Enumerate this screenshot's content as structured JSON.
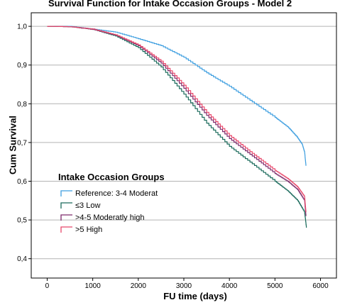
{
  "chart_data": {
    "type": "line",
    "title": "Survival Function for Intake Occasion Groups - Model 2",
    "xlabel": "FU time (days)",
    "ylabel": "Cum Survival",
    "xlim": [
      -350,
      6350
    ],
    "ylim": [
      0.35,
      1.035
    ],
    "xticks": [
      0,
      1000,
      2000,
      3000,
      4000,
      5000,
      6000
    ],
    "xtick_labels": [
      "0",
      "1000",
      "2000",
      "3000",
      "4000",
      "5000",
      "6000"
    ],
    "yticks": [
      0.4,
      0.5,
      0.6,
      0.7,
      0.8,
      0.9,
      1.0
    ],
    "ytick_labels": [
      "0,4",
      "0,5",
      "0,6",
      "0,7",
      "0,8",
      "0,9",
      "1,0"
    ],
    "grid": "horizontal",
    "legend_title": "Intake Occasion Groups",
    "legend_position": "lower-left",
    "series": [
      {
        "name": "Reference: 3-4 Moderat",
        "color": "#3f9fe0",
        "points": [
          [
            0,
            1.0
          ],
          [
            500,
            1.0
          ],
          [
            1000,
            0.993
          ],
          [
            1500,
            0.985
          ],
          [
            2000,
            0.968
          ],
          [
            2500,
            0.95
          ],
          [
            3000,
            0.92
          ],
          [
            3500,
            0.88
          ],
          [
            4000,
            0.845
          ],
          [
            4500,
            0.805
          ],
          [
            5000,
            0.765
          ],
          [
            5300,
            0.738
          ],
          [
            5500,
            0.712
          ],
          [
            5600,
            0.695
          ],
          [
            5650,
            0.675
          ],
          [
            5680,
            0.64
          ]
        ]
      },
      {
        "name": "≤3 Low",
        "color": "#1b6b5c",
        "points": [
          [
            0,
            1.0
          ],
          [
            500,
            0.999
          ],
          [
            1000,
            0.992
          ],
          [
            1500,
            0.975
          ],
          [
            2000,
            0.945
          ],
          [
            2500,
            0.895
          ],
          [
            3000,
            0.825
          ],
          [
            3500,
            0.75
          ],
          [
            4000,
            0.69
          ],
          [
            4500,
            0.645
          ],
          [
            5000,
            0.6
          ],
          [
            5300,
            0.573
          ],
          [
            5500,
            0.55
          ],
          [
            5650,
            0.52
          ],
          [
            5690,
            0.48
          ]
        ]
      },
      {
        "name": ">4-5 Moderatly high",
        "color": "#7d2a6b",
        "points": [
          [
            0,
            1.0
          ],
          [
            500,
            0.999
          ],
          [
            1000,
            0.992
          ],
          [
            1500,
            0.977
          ],
          [
            2000,
            0.95
          ],
          [
            2500,
            0.905
          ],
          [
            3000,
            0.84
          ],
          [
            3500,
            0.77
          ],
          [
            4000,
            0.71
          ],
          [
            4500,
            0.665
          ],
          [
            5000,
            0.62
          ],
          [
            5300,
            0.598
          ],
          [
            5500,
            0.578
          ],
          [
            5650,
            0.55
          ],
          [
            5680,
            0.51
          ]
        ]
      },
      {
        "name": ">5 High",
        "color": "#e8476a",
        "points": [
          [
            0,
            1.0
          ],
          [
            500,
            0.999
          ],
          [
            1000,
            0.993
          ],
          [
            1500,
            0.978
          ],
          [
            2000,
            0.952
          ],
          [
            2500,
            0.91
          ],
          [
            3000,
            0.848
          ],
          [
            3500,
            0.778
          ],
          [
            4000,
            0.718
          ],
          [
            4500,
            0.672
          ],
          [
            5000,
            0.628
          ],
          [
            5300,
            0.605
          ],
          [
            5500,
            0.585
          ],
          [
            5650,
            0.56
          ],
          [
            5680,
            0.52
          ]
        ]
      }
    ]
  }
}
